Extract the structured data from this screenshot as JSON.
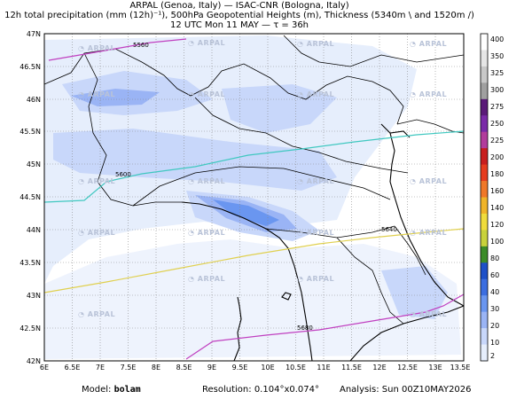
{
  "title": {
    "line1": "ARPAL (Genoa, Italy)  —  ISAC-CNR (Bologna, Italy)",
    "line2": "12h total precipitation (mm (12h)⁻¹), 500hPa Geopotential Heights (m), Thickness (5340m \\ and 1520m /)",
    "line3": "12 UTC Mon 11 MAY  —  τ = 36h"
  },
  "axes": {
    "lat_labels": [
      "47N",
      "46.5N",
      "46N",
      "45.5N",
      "45N",
      "44.5N",
      "44N",
      "43.5N",
      "43N",
      "42.5N",
      "42N"
    ],
    "lon_labels": [
      "6E",
      "6.5E",
      "7E",
      "7.5E",
      "8E",
      "8.5E",
      "9E",
      "9.5E",
      "10E",
      "10.5E",
      "11E",
      "11.5E",
      "12E",
      "12.5E",
      "13E",
      "13.5E"
    ],
    "lat_range": [
      42,
      47
    ],
    "lon_range": [
      6,
      13.5
    ]
  },
  "colorbar": {
    "levels": [
      "400",
      "350",
      "325",
      "300",
      "275",
      "250",
      "225",
      "200",
      "180",
      "160",
      "140",
      "120",
      "100",
      "80",
      "60",
      "40",
      "30",
      "20",
      "10",
      "2"
    ],
    "colors": [
      "#ffffff",
      "#e6e6e6",
      "#c8c8c8",
      "#a0a0a0",
      "#5a1a78",
      "#7a2aa8",
      "#b23c9c",
      "#c81e1e",
      "#e63c1e",
      "#f07828",
      "#f0b428",
      "#f0dc3c",
      "#c8d23c",
      "#3c8c28",
      "#1e50c8",
      "#3c6ee0",
      "#6a96f0",
      "#9ab4f5",
      "#c8d7fa",
      "#e6eefc"
    ]
  },
  "isolines": {
    "gph_5560": "5560",
    "gph_5600": "5600",
    "gph_5640": "5640",
    "gph_5680": "5680"
  },
  "watermark": "ARPAL",
  "footer": {
    "model_label": "Model:",
    "model_value": "bolam",
    "resolution_label": "Resolution:",
    "resolution_value": "0.104°x0.074°",
    "analysis_label": "Analysis:",
    "analysis_value": "Sun 00Z10MAY2026"
  }
}
